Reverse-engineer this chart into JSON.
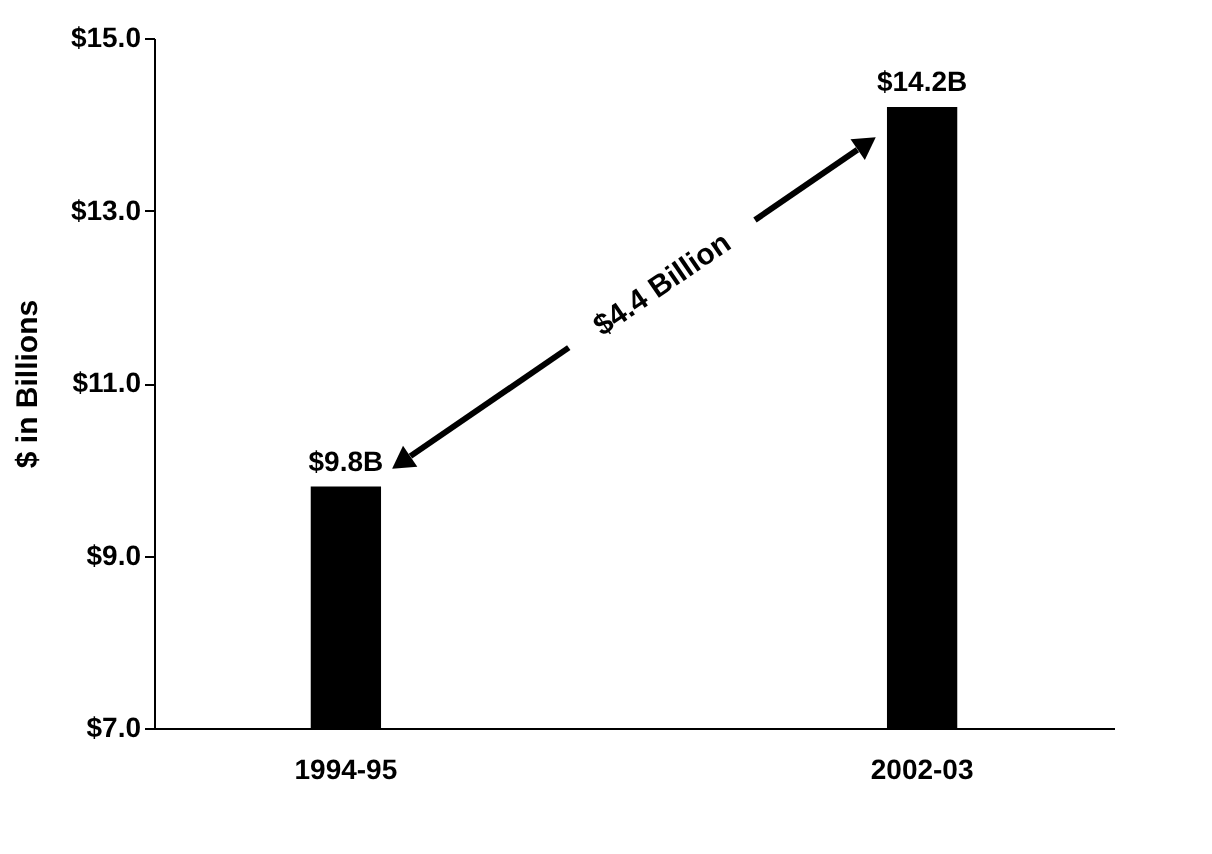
{
  "chart_data": {
    "type": "bar",
    "categories": [
      "1994-95",
      "2002-03"
    ],
    "values": [
      9.8,
      14.2
    ],
    "value_labels": [
      "$9.8B",
      "$14.2B"
    ],
    "color": "#000000",
    "ylabel": "$ in Billions",
    "ylim": [
      7,
      15
    ],
    "yticks": [
      {
        "value": 7,
        "label": "$7.0"
      },
      {
        "value": 9,
        "label": "$9.0"
      },
      {
        "value": 11,
        "label": "$11.0"
      },
      {
        "value": 13,
        "label": "$13.0"
      },
      {
        "value": 15,
        "label": "$15.0"
      }
    ],
    "annotations": [
      "$4.4 Billion"
    ],
    "grid": false
  }
}
